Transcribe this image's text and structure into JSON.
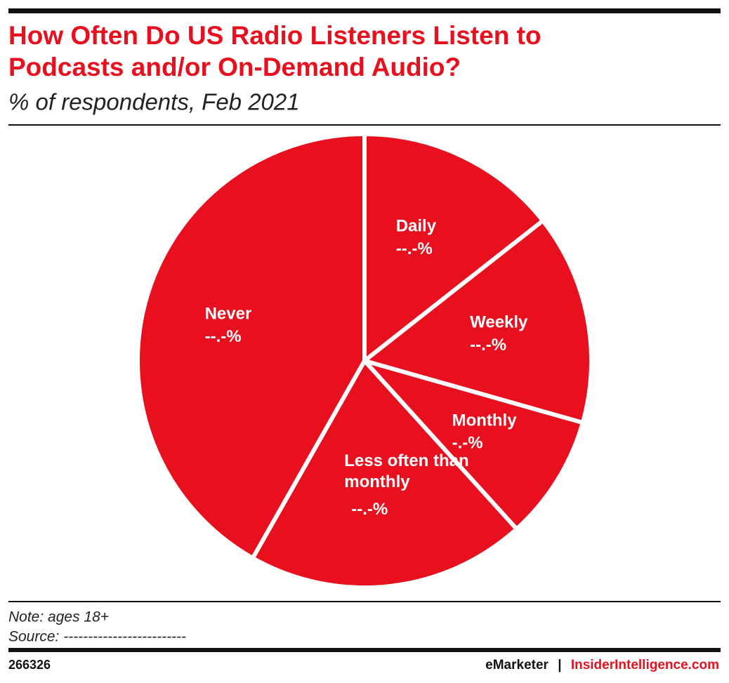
{
  "chart_data": {
    "type": "pie",
    "title": "How Often Do US Radio Listeners Listen to Podcasts and/or On-Demand Audio?",
    "subtitle": "% of respondents, Feb 2021",
    "categories": [
      "Daily",
      "Weekly",
      "Monthly",
      "Less often than monthly",
      "Never"
    ],
    "values": [
      14.4,
      15.0,
      8.9,
      19.9,
      41.8
    ],
    "value_labels": [
      "--.-%",
      "--.-%",
      "-.-%",
      "--.-%",
      "--.-%"
    ],
    "color": "#e8101e"
  },
  "footer": {
    "note": "Note: ages 18+",
    "source": "Source: -------------------------",
    "id": "266326",
    "brand": "eMarketer",
    "separator": "|",
    "site": "InsiderIntelligence.com"
  }
}
